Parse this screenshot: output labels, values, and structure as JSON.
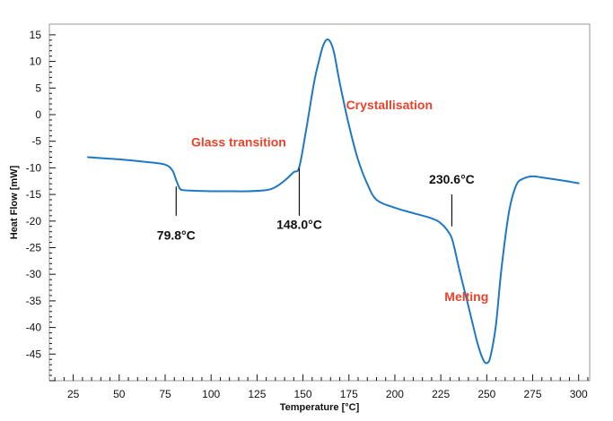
{
  "chart_data": {
    "type": "line",
    "title": "",
    "xlabel": "Temperature [°C]",
    "ylabel": "Heat Flow [mW]",
    "xlim": [
      12,
      306
    ],
    "ylim": [
      -50,
      17
    ],
    "xticks": [
      25,
      50,
      75,
      100,
      125,
      150,
      175,
      200,
      225,
      250,
      275,
      300
    ],
    "xtick_labels": [
      "25",
      "50",
      "75",
      "100",
      "125",
      "150",
      "175",
      "200",
      "225",
      "250",
      "275",
      "300"
    ],
    "yticks": [
      15,
      10,
      5,
      0,
      -5,
      -10,
      -15,
      -20,
      -25,
      -30,
      -35,
      -40,
      -45
    ],
    "ytick_labels": [
      "15",
      "10",
      "5",
      "0",
      "-5",
      "-10",
      "-15",
      "-20",
      "-25",
      "-30",
      "-35",
      "-40",
      "-45"
    ],
    "grid": false,
    "line_color": "#1f78c1",
    "series": [
      {
        "x": [
          33,
          50,
          65,
          75,
          79,
          81,
          83,
          85,
          90,
          100,
          110,
          120,
          130,
          135,
          140,
          145,
          148,
          152,
          156,
          159,
          161,
          163,
          165,
          167,
          170,
          175,
          180,
          185,
          190,
          200,
          210,
          220,
          225,
          230,
          232,
          235,
          240,
          245,
          248,
          250,
          252,
          255,
          258,
          262,
          266,
          270,
          275,
          280,
          290,
          300
        ],
        "y": [
          -8,
          -8.4,
          -8.9,
          -9.4,
          -10.5,
          -12.3,
          -13.9,
          -14.2,
          -14.3,
          -14.4,
          -14.4,
          -14.4,
          -14.2,
          -13.6,
          -12.4,
          -10.8,
          -9.8,
          -2.3,
          6,
          10.5,
          13,
          14.1,
          13.6,
          11.5,
          6,
          -2,
          -8.5,
          -13,
          -16,
          -17.5,
          -18.5,
          -19.5,
          -20.4,
          -22.5,
          -24.5,
          -29,
          -36,
          -43,
          -46,
          -46.7,
          -45.5,
          -39.5,
          -29,
          -18.5,
          -13.3,
          -12,
          -11.6,
          -11.8,
          -12.3,
          -12.9
        ]
      }
    ],
    "annotations": [
      {
        "label": "79.8°C",
        "x": 81,
        "y_line": [
          -13.5,
          -19
        ],
        "y_text": -23.5
      },
      {
        "label": "148.0°C",
        "x": 148,
        "y_line": [
          -10,
          -19
        ],
        "y_text": -21.5
      },
      {
        "label": "230.6°C",
        "x": 231,
        "y_line": [
          -21,
          -15
        ],
        "y_text": -13
      }
    ],
    "region_labels": [
      {
        "text": "Glass transition",
        "x": 115,
        "y": -6,
        "color": "#e8432c"
      },
      {
        "text": "Crystallisation",
        "x": 197,
        "y": 1,
        "color": "#e8432c"
      },
      {
        "text": "Melting",
        "x": 239,
        "y": -35,
        "color": "#e8432c"
      }
    ]
  }
}
